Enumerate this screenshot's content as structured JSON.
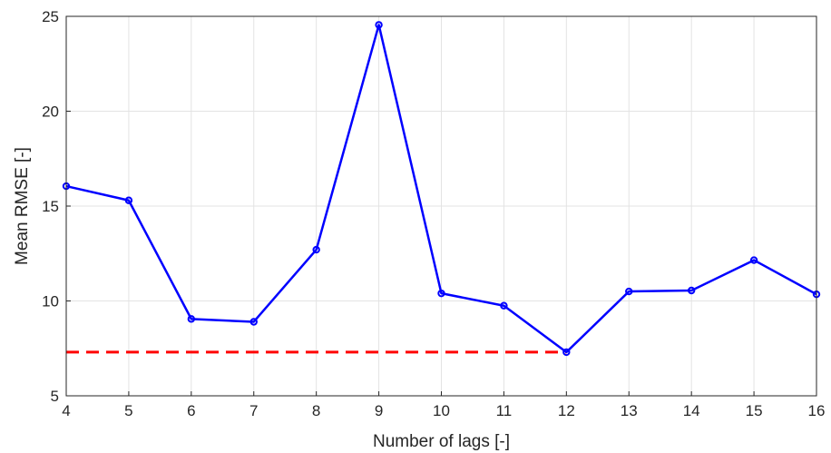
{
  "chart_data": {
    "type": "line",
    "title": "",
    "xlabel": "Number of lags [-]",
    "ylabel": "Mean RMSE [-]",
    "xlim": [
      4,
      16
    ],
    "ylim": [
      5,
      25
    ],
    "xticks": [
      4,
      5,
      6,
      7,
      8,
      9,
      10,
      11,
      12,
      13,
      14,
      15,
      16
    ],
    "yticks": [
      5,
      10,
      15,
      20,
      25
    ],
    "grid": true,
    "legend": "none",
    "series": [
      {
        "color": "#0000ff",
        "x": [
          4,
          5,
          6,
          7,
          8,
          9,
          10,
          11,
          12,
          13,
          14,
          15,
          16
        ],
        "values": [
          16.05,
          15.3,
          9.05,
          8.9,
          12.7,
          24.55,
          10.4,
          9.75,
          7.3,
          10.5,
          10.55,
          12.15,
          10.35
        ]
      }
    ],
    "reference_line": {
      "style": "dashed",
      "color": "#ff0000",
      "x": [
        4,
        12
      ],
      "y": 7.3
    }
  }
}
